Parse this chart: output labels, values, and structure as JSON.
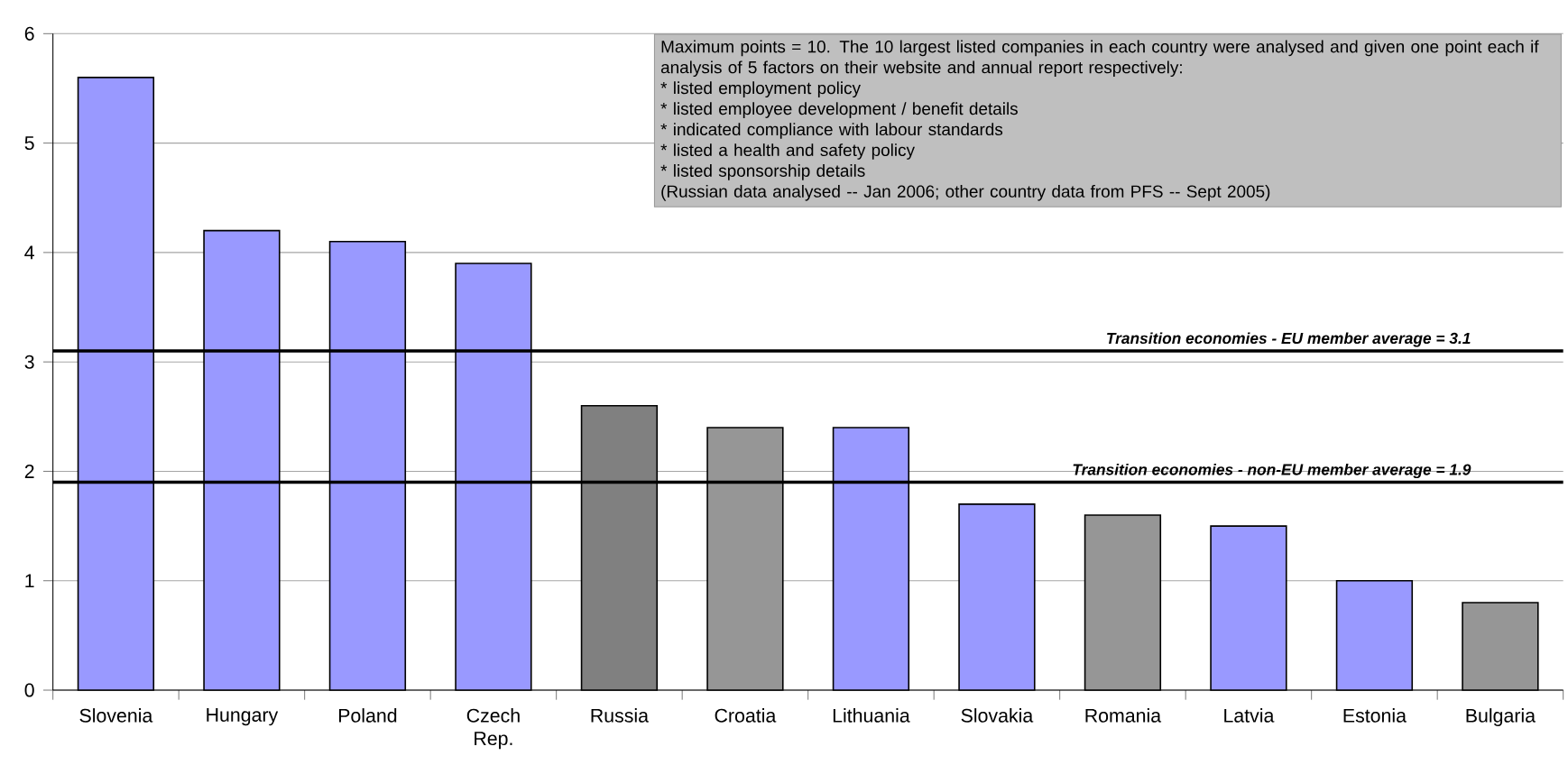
{
  "chart_data": {
    "type": "bar",
    "categories": [
      "Slovenia",
      "Hungary",
      "Poland",
      "Czech Rep.",
      "Russia",
      "Croatia",
      "Lithuania",
      "Slovakia",
      "Romania",
      "Latvia",
      "Estonia",
      "Bulgaria"
    ],
    "values": [
      5.6,
      4.2,
      4.1,
      3.9,
      2.6,
      2.4,
      2.4,
      1.7,
      1.6,
      1.5,
      1.0,
      0.8
    ],
    "colors": [
      "#9999ff",
      "#9999ff",
      "#9999ff",
      "#9999ff",
      "#808080",
      "#969696",
      "#9999ff",
      "#9999ff",
      "#969696",
      "#9999ff",
      "#9999ff",
      "#969696"
    ],
    "ylim": [
      0,
      6
    ],
    "yticks": [
      0,
      1,
      2,
      3,
      4,
      5,
      6
    ],
    "grid": "y",
    "ref_lines": [
      {
        "axis": "y",
        "value": 3.1,
        "label": "Transition economies - EU member average = 3.1",
        "color": "#000000"
      },
      {
        "axis": "y",
        "value": 1.9,
        "label": "Transition economies - non-EU member average = 1.9",
        "color": "#000000"
      }
    ],
    "annotations": [
      "Maximum points = 10.  The 10 largest listed companies in each country were analysed and given one point each if analysis of 5 factors on their website and annual report respectively:",
      "* listed employment policy",
      "* listed employee development / benefit details",
      "* indicated compliance with labour standards",
      "* listed a health and safety policy",
      "* listed sponsorship details",
      "(Russian data analysed -- Jan 2006; other country data from PFS -- Sept 2005)"
    ]
  }
}
